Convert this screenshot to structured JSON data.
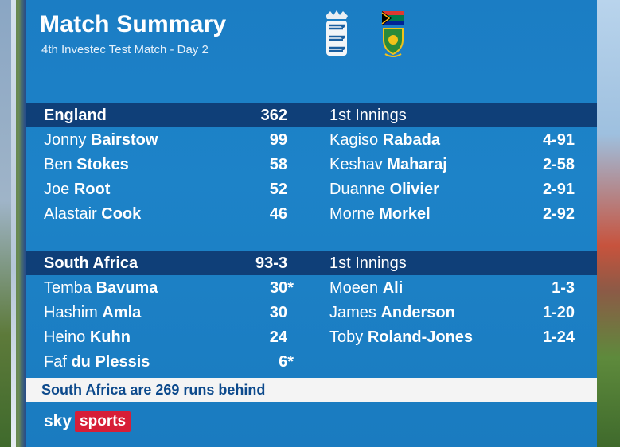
{
  "header": {
    "title": "Match Summary",
    "subtitle": "4th Investec Test Match - Day 2"
  },
  "innings": [
    {
      "team": "England",
      "score": "362",
      "bowling_label": "1st Innings",
      "batters": [
        {
          "first": "Jonny",
          "last": "Bairstow",
          "runs": "99"
        },
        {
          "first": "Ben",
          "last": "Stokes",
          "runs": "58"
        },
        {
          "first": "Joe",
          "last": "Root",
          "runs": "52"
        },
        {
          "first": "Alastair",
          "last": "Cook",
          "runs": "46"
        }
      ],
      "bowlers": [
        {
          "first": "Kagiso",
          "last": "Rabada",
          "figures": "4-91"
        },
        {
          "first": "Keshav",
          "last": "Maharaj",
          "figures": "2-58"
        },
        {
          "first": "Duanne",
          "last": "Olivier",
          "figures": "2-91"
        },
        {
          "first": "Morne",
          "last": "Morkel",
          "figures": "2-92"
        }
      ]
    },
    {
      "team": "South Africa",
      "score": "93-3",
      "bowling_label": "1st Innings",
      "batters": [
        {
          "first": "Temba",
          "last": "Bavuma",
          "runs": "30*"
        },
        {
          "first": "Hashim",
          "last": "Amla",
          "runs": "30"
        },
        {
          "first": "Heino",
          "last": "Kuhn",
          "runs": "24"
        },
        {
          "first": "Faf",
          "last": "du Plessis",
          "runs": "6*"
        }
      ],
      "bowlers": [
        {
          "first": "Moeen",
          "last": "Ali",
          "figures": "1-3"
        },
        {
          "first": "James",
          "last": "Anderson",
          "figures": "1-20"
        },
        {
          "first": "Toby",
          "last": "Roland-Jones",
          "figures": "1-24"
        }
      ]
    }
  ],
  "footer": {
    "status": "South Africa are 269 runs behind"
  },
  "branding": {
    "sky": "sky",
    "sports": "sports"
  },
  "colors": {
    "panel": "#1b7dc4",
    "band": "#0f3f78",
    "brand_red": "#d71e37"
  }
}
